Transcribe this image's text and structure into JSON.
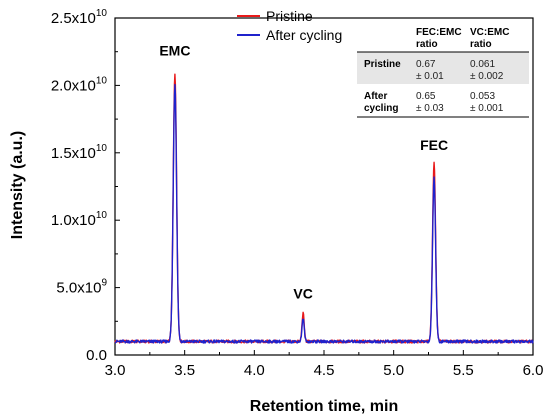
{
  "chart_data": {
    "type": "line",
    "xlabel": "Retention time, min",
    "ylabel": "Intensity (a.u.)",
    "xlim": [
      3.0,
      6.0
    ],
    "ylim": [
      0,
      25000000000
    ],
    "x_ticks": [
      {
        "value": 3.0,
        "label": "3.0"
      },
      {
        "value": 3.5,
        "label": "3.5"
      },
      {
        "value": 4.0,
        "label": "4.0"
      },
      {
        "value": 4.5,
        "label": "4.5"
      },
      {
        "value": 5.0,
        "label": "5.0"
      },
      {
        "value": 5.5,
        "label": "5.5"
      },
      {
        "value": 6.0,
        "label": "6.0"
      }
    ],
    "y_ticks": [
      {
        "value": 0,
        "mantissa": "0.0",
        "exp": ""
      },
      {
        "value": 5000000000,
        "mantissa": "5.0x10",
        "exp": "9"
      },
      {
        "value": 10000000000,
        "mantissa": "1.0x10",
        "exp": "10"
      },
      {
        "value": 15000000000,
        "mantissa": "1.5x10",
        "exp": "10"
      },
      {
        "value": 20000000000,
        "mantissa": "2.0x10",
        "exp": "10"
      },
      {
        "value": 25000000000,
        "mantissa": "2.5x10",
        "exp": "10"
      }
    ],
    "baseline": 1000000000,
    "series": [
      {
        "name": "Pristine",
        "color": "#e8191a",
        "peaks": [
          {
            "x": 3.43,
            "height": 20900000000,
            "width": 0.012
          },
          {
            "x": 4.35,
            "height": 3100000000,
            "width": 0.008
          },
          {
            "x": 5.29,
            "height": 14200000000,
            "width": 0.011
          }
        ]
      },
      {
        "name": "After cycling",
        "color": "#1f22cc",
        "peaks": [
          {
            "x": 3.43,
            "height": 20100000000,
            "width": 0.012
          },
          {
            "x": 4.35,
            "height": 2700000000,
            "width": 0.008
          },
          {
            "x": 5.29,
            "height": 13100000000,
            "width": 0.011
          }
        ]
      }
    ],
    "annotations": [
      {
        "text": "EMC",
        "x": 3.43,
        "y": 22200000000
      },
      {
        "text": "VC",
        "x": 4.35,
        "y": 4200000000
      },
      {
        "text": "FEC",
        "x": 5.29,
        "y": 15200000000
      }
    ],
    "legend_placement": "top-center",
    "grid": false,
    "table": {
      "headers": [
        "",
        "FEC:EMC ratio",
        "VC:EMC ratio"
      ],
      "rows": [
        {
          "label": "Pristine",
          "fec_emc": "0.67 ± 0.01",
          "vc_emc": "0.061 ± 0.002"
        },
        {
          "label": "After cycling",
          "fec_emc": "0.65 ± 0.03",
          "vc_emc": "0.053 ± 0.001"
        }
      ]
    }
  }
}
